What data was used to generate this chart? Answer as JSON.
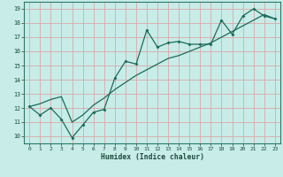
{
  "xlabel": "Humidex (Indice chaleur)",
  "bg_color": "#c8ece8",
  "grid_color": "#d8a8a8",
  "line_color": "#1a6b5a",
  "x_data": [
    0,
    1,
    2,
    3,
    4,
    5,
    6,
    7,
    8,
    9,
    10,
    11,
    12,
    13,
    14,
    15,
    16,
    17,
    18,
    19,
    20,
    21,
    22,
    23
  ],
  "y_zigzag": [
    12.1,
    11.5,
    12.0,
    11.2,
    9.9,
    10.8,
    11.7,
    11.9,
    14.1,
    15.3,
    15.1,
    17.5,
    16.3,
    16.6,
    16.7,
    16.5,
    16.5,
    16.5,
    18.2,
    17.2,
    18.5,
    19.0,
    18.5,
    18.3
  ],
  "y_trend": [
    12.1,
    12.3,
    12.6,
    12.8,
    11.0,
    11.5,
    12.2,
    12.7,
    13.3,
    13.8,
    14.3,
    14.7,
    15.1,
    15.5,
    15.7,
    16.0,
    16.3,
    16.6,
    17.0,
    17.4,
    17.8,
    18.2,
    18.6,
    18.3
  ],
  "xlim": [
    0,
    23
  ],
  "ylim": [
    9.5,
    19.5
  ],
  "yticks": [
    10,
    11,
    12,
    13,
    14,
    15,
    16,
    17,
    18,
    19
  ],
  "xticks": [
    0,
    1,
    2,
    3,
    4,
    5,
    6,
    7,
    8,
    9,
    10,
    11,
    12,
    13,
    14,
    15,
    16,
    17,
    18,
    19,
    20,
    21,
    22,
    23
  ]
}
